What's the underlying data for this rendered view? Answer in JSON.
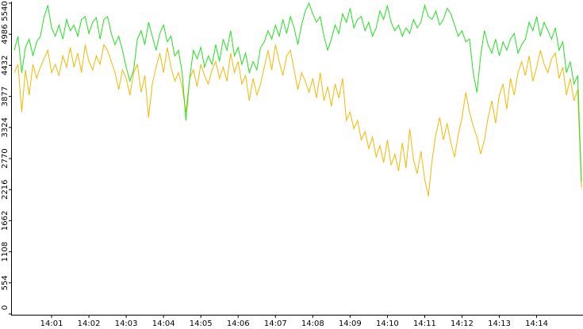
{
  "chart_data": {
    "type": "line",
    "categories": [
      null,
      null,
      null,
      null,
      null,
      null,
      null,
      null,
      null,
      null,
      "14:01",
      null,
      null,
      null,
      null,
      null,
      null,
      null,
      null,
      null,
      "14:02",
      null,
      null,
      null,
      null,
      null,
      null,
      null,
      null,
      null,
      "14:03",
      null,
      null,
      null,
      null,
      null,
      null,
      null,
      null,
      null,
      "14:04",
      null,
      null,
      null,
      null,
      null,
      null,
      null,
      null,
      null,
      "14:05",
      null,
      null,
      null,
      null,
      null,
      null,
      null,
      null,
      null,
      "14:06",
      null,
      null,
      null,
      null,
      null,
      null,
      null,
      null,
      null,
      "14:07",
      null,
      null,
      null,
      null,
      null,
      null,
      null,
      null,
      null,
      "14:08",
      null,
      null,
      null,
      null,
      null,
      null,
      null,
      null,
      null,
      "14:09",
      null,
      null,
      null,
      null,
      null,
      null,
      null,
      null,
      null,
      "14:10",
      null,
      null,
      null,
      null,
      null,
      null,
      null,
      null,
      null,
      "14:11",
      null,
      null,
      null,
      null,
      null,
      null,
      null,
      null,
      null,
      "14:12",
      null,
      null,
      null,
      null,
      null,
      null,
      null,
      null,
      null,
      "14:13",
      null,
      null,
      null,
      null,
      null,
      null,
      null,
      null,
      null,
      "14:14",
      null,
      null,
      null,
      null,
      null,
      null,
      null,
      null,
      null,
      null,
      null,
      null
    ],
    "series": [
      {
        "color": "#22e022",
        "values": [
          4700,
          4950,
          4300,
          4750,
          4900,
          4600,
          4850,
          4950,
          5300,
          5500,
          5100,
          4950,
          5150,
          4900,
          5250,
          5050,
          5150,
          4950,
          5250,
          5300,
          5000,
          5200,
          5280,
          4900,
          5250,
          5300,
          5000,
          4800,
          4950,
          4700,
          4400,
          4150,
          4350,
          4900,
          5050,
          4800,
          5200,
          4950,
          4700,
          5000,
          5150,
          4850,
          4950,
          4600,
          4700,
          4300,
          3450,
          4200,
          4700,
          4550,
          4750,
          4400,
          4600,
          4450,
          4800,
          4500,
          4900,
          4700,
          5050,
          4600,
          4750,
          4450,
          4650,
          4300,
          4500,
          4350,
          4750,
          4850,
          5050,
          4900,
          5150,
          4950,
          5250,
          5000,
          5300,
          5100,
          4800,
          5150,
          5400,
          5540,
          5350,
          5200,
          5300,
          4950,
          4700,
          4900,
          5150,
          5000,
          5350,
          5200,
          5450,
          5100,
          5250,
          5300,
          5050,
          5200,
          4950,
          5100,
          5400,
          5250,
          5500,
          5200,
          5050,
          5150,
          4950,
          5100,
          5000,
          5250,
          5100,
          5200,
          5500,
          5300,
          5250,
          5400,
          5150,
          5250,
          5450,
          5350,
          5150,
          4950,
          5050,
          4850,
          4900,
          4300,
          3950,
          4600,
          5050,
          4800,
          4650,
          4900,
          4600,
          4850,
          4700,
          4900,
          5000,
          4650,
          4800,
          4900,
          5200,
          5050,
          5300,
          4950,
          5200,
          5050,
          4900,
          5100,
          4700,
          4850,
          4300,
          4500,
          4100,
          4250,
          2350
        ]
      },
      {
        "color": "#f5b800",
        "values": [
          4300,
          4450,
          3600,
          4350,
          3900,
          4450,
          4200,
          4400,
          4550,
          4700,
          4300,
          4450,
          4250,
          4600,
          4400,
          4750,
          4400,
          4650,
          4300,
          4800,
          4500,
          4350,
          4600,
          4450,
          4800,
          4700,
          4500,
          4300,
          4000,
          4350,
          4200,
          3900,
          4300,
          4450,
          3950,
          4250,
          3500,
          4100,
          4400,
          4650,
          4300,
          4750,
          4400,
          4150,
          4300,
          4050,
          3600,
          4200,
          4350,
          4050,
          4450,
          4250,
          4100,
          4350,
          4500,
          4200,
          4400,
          4150,
          4650,
          4300,
          4500,
          4100,
          4250,
          3800,
          4200,
          3900,
          4100,
          4400,
          4700,
          4350,
          4800,
          4500,
          4250,
          4600,
          4700,
          4350,
          4000,
          4300,
          4150,
          3950,
          4200,
          3850,
          4300,
          3800,
          4050,
          3700,
          4100,
          3850,
          4200,
          3450,
          3600,
          3300,
          3450,
          3100,
          3250,
          2950,
          3150,
          2800,
          3000,
          2700,
          3100,
          2650,
          2850,
          2550,
          3050,
          2600,
          3300,
          2750,
          2500,
          2900,
          2400,
          2100,
          2750,
          3200,
          3500,
          3100,
          3400,
          3050,
          2800,
          3200,
          3500,
          3950,
          3600,
          3350,
          3150,
          2850,
          3100,
          3500,
          3800,
          3400,
          3900,
          4100,
          3650,
          4200,
          3900,
          4300,
          4500,
          4250,
          4600,
          4150,
          4400,
          4700,
          4450,
          4300,
          4550,
          4650,
          4200,
          4400,
          3900,
          4200,
          3800,
          4000,
          2250
        ]
      }
    ],
    "ylim": [
      0,
      5540
    ],
    "yticks": [
      0,
      554,
      1108,
      1662,
      2216,
      2770,
      3324,
      3877,
      4432,
      4986,
      5540
    ]
  }
}
